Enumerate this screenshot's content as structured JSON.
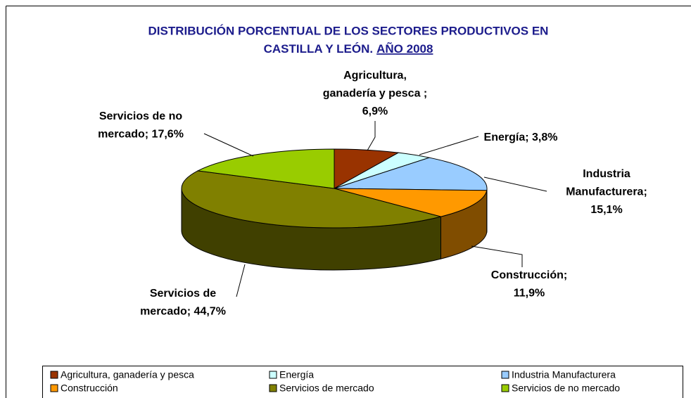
{
  "chart_data": {
    "type": "pie",
    "title": [
      "DISTRIBUCIÓN PORCENTUAL DE LOS SECTORES PRODUCTIVOS EN",
      "CASTILLA Y LEÓN.",
      "AÑO 2008"
    ],
    "categories": [
      "Agricultura, ganadería y pesca",
      "Energía",
      "Industria Manufacturera",
      "Construcción",
      "Servicios de mercado",
      "Servicios de no mercado"
    ],
    "values": [
      6.9,
      3.8,
      15.1,
      11.9,
      44.7,
      17.6
    ],
    "value_labels": [
      [
        "Agricultura,",
        "ganadería y pesca ;",
        "6,9%"
      ],
      [
        "Energía; 3,8%"
      ],
      [
        "Industria",
        "Manufacturera;",
        "15,1%"
      ],
      [
        "Construcción;",
        "11,9%"
      ],
      [
        "Servicios de",
        "mercado; 44,7%"
      ],
      [
        "Servicios de no",
        "mercado; 17,6%"
      ]
    ],
    "colors": [
      "#993300",
      "#ccffff",
      "#99ccff",
      "#ff9900",
      "#808000",
      "#99cc00"
    ],
    "legend": "bottom"
  }
}
